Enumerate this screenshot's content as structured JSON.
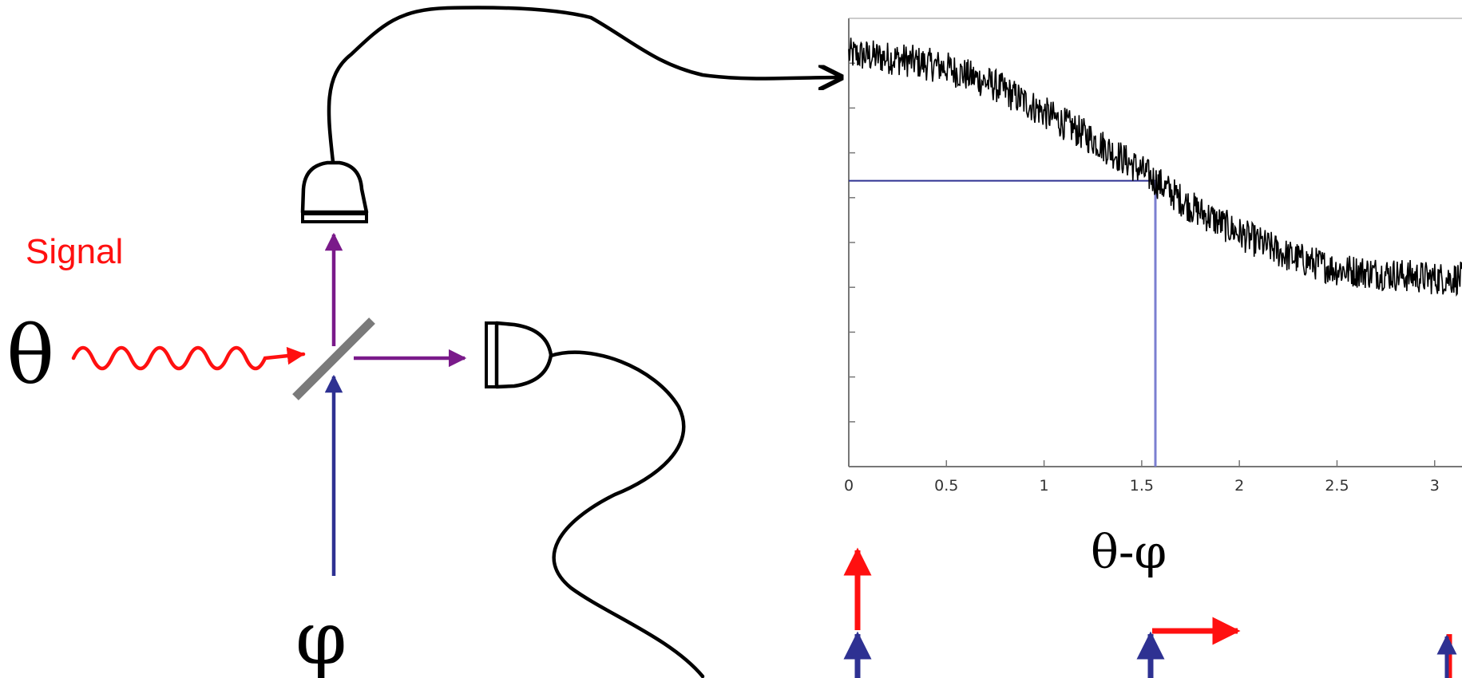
{
  "labels": {
    "signal": "Signal",
    "theta": "θ",
    "phi": "φ",
    "axis_xlabel": "θ-φ"
  },
  "colors": {
    "signal": "#ff1010",
    "reference": "#2e3192",
    "output": "#7a1a8a",
    "beamsplitter": "#7a7a7a",
    "trace": "#000000",
    "marker": "#7b7fd0"
  },
  "chart_data": {
    "type": "line",
    "title": "",
    "xlabel": "θ-φ",
    "ylabel": "",
    "x_ticks": [
      "0",
      "0.5",
      "1",
      "1.5",
      "2",
      "2.5",
      "3"
    ],
    "xlim": [
      0,
      3.14
    ],
    "ylim": [
      0,
      1
    ],
    "grid": false,
    "marker_x": 1.57,
    "series": [
      {
        "x": [
          0,
          0.25,
          0.5,
          0.75,
          1.0,
          1.25,
          1.5,
          1.75,
          2.0,
          2.25,
          2.5,
          2.75,
          3.0,
          3.14
        ],
        "values": [
          0.92,
          0.91,
          0.89,
          0.85,
          0.79,
          0.73,
          0.66,
          0.58,
          0.52,
          0.47,
          0.44,
          0.43,
          0.42,
          0.42
        ]
      }
    ]
  },
  "icons": {
    "detector_top": "photodetector-icon",
    "detector_right": "photodetector-icon",
    "beamsplitter": "beamsplitter-icon"
  }
}
